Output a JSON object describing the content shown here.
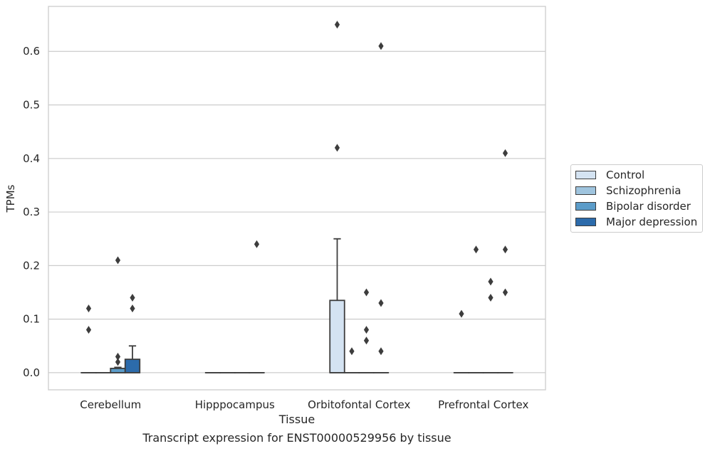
{
  "chart_data": {
    "type": "box",
    "title": "",
    "caption": "Transcript expression for ENST00000529956 by tissue",
    "xlabel": "Tissue",
    "ylabel": "TPMs",
    "ylim": [
      -0.032,
      0.684
    ],
    "yticks": [
      0.0,
      0.1,
      0.2,
      0.3,
      0.4,
      0.5,
      0.6
    ],
    "ytick_labels": [
      "0.0",
      "0.1",
      "0.2",
      "0.3",
      "0.4",
      "0.5",
      "0.6"
    ],
    "grid": "horizontal",
    "legend_position": "right",
    "categories": [
      "Cerebellum",
      "Hipppocampus",
      "Orbitofontal Cortex",
      "Prefrontal Cortex"
    ],
    "series": [
      {
        "name": "Control",
        "color": "#d4e3f2",
        "boxes": [
          {
            "q1": 0,
            "median": 0,
            "q3": 0,
            "whisker_low": 0,
            "whisker_high": 0,
            "outliers": [
              0.08,
              0.12
            ]
          },
          {
            "q1": 0,
            "median": 0,
            "q3": 0,
            "whisker_low": 0,
            "whisker_high": 0,
            "outliers": []
          },
          {
            "q1": 0,
            "median": 0,
            "q3": 0.135,
            "whisker_low": 0,
            "whisker_high": 0.25,
            "outliers": [
              0.42,
              0.65
            ]
          },
          {
            "q1": 0,
            "median": 0,
            "q3": 0,
            "whisker_low": 0,
            "whisker_high": 0,
            "outliers": [
              0.11
            ]
          }
        ]
      },
      {
        "name": "Schizophrenia",
        "color": "#9fc4de",
        "boxes": [
          {
            "q1": 0,
            "median": 0,
            "q3": 0,
            "whisker_low": 0,
            "whisker_high": 0,
            "outliers": []
          },
          {
            "q1": 0,
            "median": 0,
            "q3": 0,
            "whisker_low": 0,
            "whisker_high": 0,
            "outliers": []
          },
          {
            "q1": 0,
            "median": 0,
            "q3": 0,
            "whisker_low": 0,
            "whisker_high": 0,
            "outliers": [
              0.04
            ]
          },
          {
            "q1": 0,
            "median": 0,
            "q3": 0,
            "whisker_low": 0,
            "whisker_high": 0,
            "outliers": [
              0.23
            ]
          }
        ]
      },
      {
        "name": "Bipolar disorder",
        "color": "#5b9cc9",
        "boxes": [
          {
            "q1": 0,
            "median": 0,
            "q3": 0.008,
            "whisker_low": 0,
            "whisker_high": 0.01,
            "outliers": [
              0.02,
              0.03,
              0.21
            ]
          },
          {
            "q1": 0,
            "median": 0,
            "q3": 0,
            "whisker_low": 0,
            "whisker_high": 0,
            "outliers": []
          },
          {
            "q1": 0,
            "median": 0,
            "q3": 0,
            "whisker_low": 0,
            "whisker_high": 0,
            "outliers": [
              0.06,
              0.08,
              0.15
            ]
          },
          {
            "q1": 0,
            "median": 0,
            "q3": 0,
            "whisker_low": 0,
            "whisker_high": 0,
            "outliers": [
              0.14,
              0.17
            ]
          }
        ]
      },
      {
        "name": "Major depression",
        "color": "#2c6bab",
        "boxes": [
          {
            "q1": 0,
            "median": 0,
            "q3": 0.025,
            "whisker_low": 0,
            "whisker_high": 0.05,
            "outliers": [
              0.12,
              0.14
            ]
          },
          {
            "q1": 0,
            "median": 0,
            "q3": 0,
            "whisker_low": 0,
            "whisker_high": 0,
            "outliers": [
              0.24
            ]
          },
          {
            "q1": 0,
            "median": 0,
            "q3": 0,
            "whisker_low": 0,
            "whisker_high": 0,
            "outliers": [
              0.04,
              0.13,
              0.61
            ]
          },
          {
            "q1": 0,
            "median": 0,
            "q3": 0,
            "whisker_low": 0,
            "whisker_high": 0,
            "outliers": [
              0.15,
              0.23,
              0.41
            ]
          }
        ]
      }
    ]
  },
  "colors": {
    "grid": "#cccccc",
    "axis_frame": "#cccccc",
    "box_edge": "#3d3d3d",
    "text": "#262626"
  }
}
